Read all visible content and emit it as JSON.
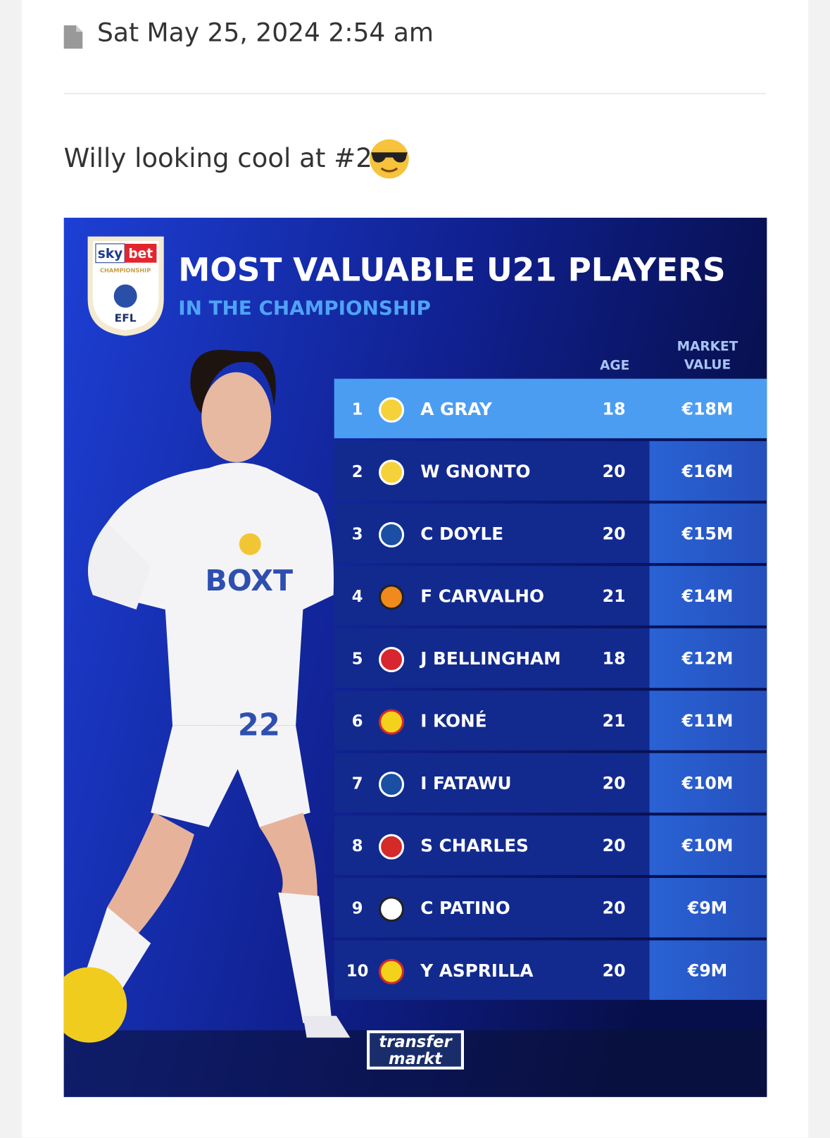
{
  "post": {
    "date": "Sat May 25, 2024 2:54 am",
    "text": "Willy looking cool at #2"
  },
  "graphic": {
    "sponsor": "sky",
    "sponsor_bet": "bet",
    "league": "CHAMPIONSHIP",
    "badge": "EFL",
    "title": "MOST VALUABLE U21 PLAYERS",
    "subtitle": "IN THE CHAMPIONSHIP",
    "headers": {
      "age": "AGE",
      "value_line1": "MARKET",
      "value_line2": "VALUE"
    },
    "rows": [
      {
        "rank": "1",
        "name": "A GRAY",
        "age": "18",
        "value": "€18M"
      },
      {
        "rank": "2",
        "name": "W GNONTO",
        "age": "20",
        "value": "€16M"
      },
      {
        "rank": "3",
        "name": "C DOYLE",
        "age": "20",
        "value": "€15M"
      },
      {
        "rank": "4",
        "name": "F CARVALHO",
        "age": "21",
        "value": "€14M"
      },
      {
        "rank": "5",
        "name": "J BELLINGHAM",
        "age": "18",
        "value": "€12M"
      },
      {
        "rank": "6",
        "name": "I KONÉ",
        "age": "21",
        "value": "€11M"
      },
      {
        "rank": "7",
        "name": "I FATAWU",
        "age": "20",
        "value": "€10M"
      },
      {
        "rank": "8",
        "name": "S CHARLES",
        "age": "20",
        "value": "€10M"
      },
      {
        "rank": "9",
        "name": "C PATINO",
        "age": "20",
        "value": "€9M"
      },
      {
        "rank": "10",
        "name": "Y ASPRILLA",
        "age": "20",
        "value": "€9M"
      }
    ],
    "shirt_sponsor": "BOXT",
    "shirt_number": "22",
    "source_line1": "transfer",
    "source_line2": "markt"
  }
}
